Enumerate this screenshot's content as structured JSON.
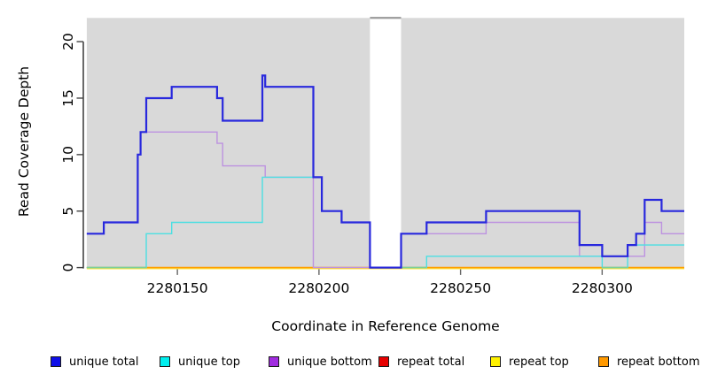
{
  "chart_data": {
    "type": "line",
    "step_mode": "after",
    "title": "",
    "xlabel": "Coordinate in Reference Genome",
    "ylabel": "Read Coverage Depth",
    "xlim": [
      2280118,
      2280329
    ],
    "ylim": [
      0,
      22
    ],
    "grid": false,
    "plot_background": "#d9d9d9",
    "xticks": {
      "values": [
        2280150,
        2280200,
        2280250,
        2280300
      ],
      "labels": [
        "2280150",
        "2280200",
        "2280250",
        "2280300"
      ]
    },
    "yticks": {
      "values": [
        0,
        5,
        10,
        15,
        20
      ],
      "labels": [
        "0",
        "5",
        "10",
        "15",
        "20"
      ]
    },
    "masked_region": {
      "x_from": 2280218,
      "x_to": 2280229,
      "fill": "#ffffff",
      "cap_color": "#9b9b9b"
    },
    "zero_overlap_color": "#7ccf9b",
    "draw_order": [
      "repeat total",
      "repeat top",
      "repeat bottom",
      "unique bottom",
      "unique top",
      "unique total"
    ],
    "series": [
      {
        "name": "unique total",
        "line_color": "#2828dd",
        "line_width": 2.2,
        "steps": [
          [
            2280118,
            3
          ],
          [
            2280124,
            4
          ],
          [
            2280136,
            10
          ],
          [
            2280137,
            12
          ],
          [
            2280139,
            15
          ],
          [
            2280148,
            16
          ],
          [
            2280164,
            15
          ],
          [
            2280166,
            13
          ],
          [
            2280180,
            17
          ],
          [
            2280181,
            16
          ],
          [
            2280198,
            8
          ],
          [
            2280201,
            5
          ],
          [
            2280208,
            4
          ],
          [
            2280218,
            0
          ],
          [
            2280229,
            3
          ],
          [
            2280238,
            4
          ],
          [
            2280259,
            5
          ],
          [
            2280292,
            2
          ],
          [
            2280300,
            1
          ],
          [
            2280309,
            2
          ],
          [
            2280312,
            3
          ],
          [
            2280315,
            6
          ],
          [
            2280321,
            5
          ]
        ]
      },
      {
        "name": "unique top",
        "line_color": "#4cdfe2",
        "line_width": 1.4,
        "steps": [
          [
            2280118,
            0
          ],
          [
            2280139,
            3
          ],
          [
            2280148,
            4
          ],
          [
            2280180,
            8
          ],
          [
            2280201,
            5
          ],
          [
            2280208,
            4
          ],
          [
            2280218,
            0
          ],
          [
            2280238,
            1
          ],
          [
            2280300,
            0
          ],
          [
            2280309,
            2
          ]
        ]
      },
      {
        "name": "unique bottom",
        "line_color": "#bd92e0",
        "line_width": 1.4,
        "steps": [
          [
            2280118,
            3
          ],
          [
            2280124,
            4
          ],
          [
            2280136,
            10
          ],
          [
            2280137,
            12
          ],
          [
            2280164,
            11
          ],
          [
            2280166,
            9
          ],
          [
            2280181,
            8
          ],
          [
            2280198,
            0
          ],
          [
            2280229,
            3
          ],
          [
            2280259,
            4
          ],
          [
            2280292,
            1
          ],
          [
            2280315,
            4
          ],
          [
            2280321,
            3
          ]
        ]
      },
      {
        "name": "repeat total",
        "line_color": "#dd0000",
        "line_width": 1.1,
        "y_offset": 0,
        "steps": [
          [
            2280118,
            0
          ]
        ]
      },
      {
        "name": "repeat top",
        "line_color": "#ffe93d",
        "line_width": 1.2,
        "y_offset": 1.3,
        "steps": [
          [
            2280118,
            0
          ]
        ]
      },
      {
        "name": "repeat bottom",
        "line_color": "#ff9e00",
        "line_width": 1.6,
        "y_offset": 0,
        "steps": [
          [
            2280118,
            0
          ]
        ]
      }
    ]
  },
  "legend": {
    "items": [
      {
        "label": "unique total",
        "color": "#0f0fe8"
      },
      {
        "label": "unique top",
        "color": "#00eeee"
      },
      {
        "label": "unique bottom",
        "color": "#a12ce0"
      },
      {
        "label": "repeat total",
        "color": "#e60000"
      },
      {
        "label": "repeat top",
        "color": "#fff200"
      },
      {
        "label": "repeat bottom",
        "color": "#ff9900"
      }
    ]
  }
}
